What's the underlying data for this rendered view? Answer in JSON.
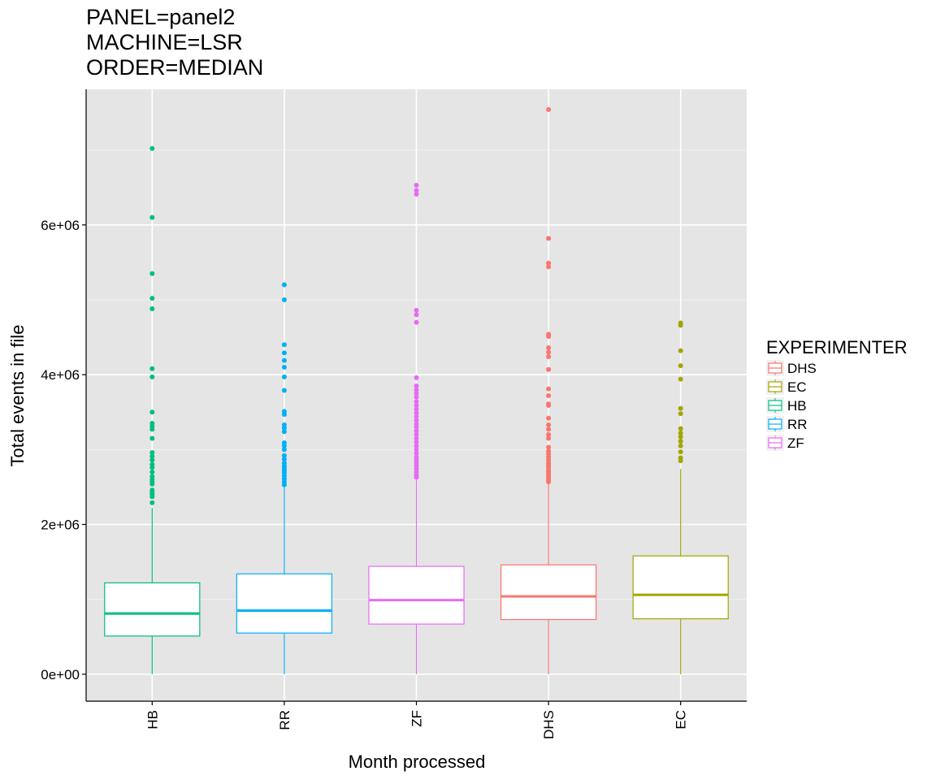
{
  "title_lines": [
    "PANEL=panel2",
    "MACHINE=LSR",
    "ORDER=MEDIAN"
  ],
  "chart_data": {
    "type": "boxplot",
    "xlabel": "Month processed",
    "ylabel": "Total events in file",
    "ylim": [
      -360000,
      7810000
    ],
    "y_ticks": [
      0,
      2000000,
      4000000,
      6000000
    ],
    "y_tick_labels": [
      "0e+00",
      "2e+06",
      "4e+06",
      "6e+06"
    ],
    "grid": true,
    "legend_title": "EXPERIMENTER",
    "legend_position": "right",
    "legend": [
      {
        "name": "DHS",
        "color": "#F8766D"
      },
      {
        "name": "EC",
        "color": "#A3A500"
      },
      {
        "name": "HB",
        "color": "#00BF7D"
      },
      {
        "name": "RR",
        "color": "#00B0F6"
      },
      {
        "name": "ZF",
        "color": "#E76BF3"
      }
    ],
    "categories": [
      "HB",
      "RR",
      "ZF",
      "DHS",
      "EC"
    ],
    "boxes": [
      {
        "category": "HB",
        "color": "#00BF7D",
        "min": 0,
        "q1": 510000,
        "median": 810000,
        "q3": 1220000,
        "max": 2220000,
        "outliers": [
          7020000,
          6100000,
          5350000,
          5020000,
          4880000,
          4080000,
          3970000,
          3500000,
          3350000,
          3310000,
          3270000,
          3150000,
          2960000,
          2910000,
          2860000,
          2800000,
          2760000,
          2700000,
          2640000,
          2600000,
          2570000,
          2540000,
          2460000,
          2430000,
          2400000,
          2370000,
          2290000
        ]
      },
      {
        "category": "RR",
        "color": "#00B0F6",
        "min": 0,
        "q1": 550000,
        "median": 850000,
        "q3": 1340000,
        "max": 2520000,
        "outliers": [
          5200000,
          5000000,
          4400000,
          4290000,
          4190000,
          4100000,
          3970000,
          3790000,
          3510000,
          3470000,
          3330000,
          3290000,
          3240000,
          3090000,
          3050000,
          3000000,
          2920000,
          2870000,
          2820000,
          2780000,
          2750000,
          2720000,
          2690000,
          2650000,
          2610000,
          2570000,
          2530000
        ]
      },
      {
        "category": "ZF",
        "color": "#E76BF3",
        "min": 0,
        "q1": 670000,
        "median": 990000,
        "q3": 1440000,
        "max": 2600000,
        "outliers": [
          6530000,
          6460000,
          6410000,
          4860000,
          4800000,
          4700000,
          3960000,
          3850000,
          3800000,
          3750000,
          3700000,
          3640000,
          3590000,
          3540000,
          3490000,
          3440000,
          3390000,
          3340000,
          3300000,
          3250000,
          3200000,
          3150000,
          3100000,
          3050000,
          3000000,
          2950000,
          2900000,
          2860000,
          2820000,
          2780000,
          2740000,
          2700000,
          2660000,
          2630000
        ]
      },
      {
        "category": "DHS",
        "color": "#F8766D",
        "min": 0,
        "q1": 730000,
        "median": 1040000,
        "q3": 1460000,
        "max": 2560000,
        "outliers": [
          7540000,
          5820000,
          5490000,
          5440000,
          4540000,
          4510000,
          4360000,
          4300000,
          4240000,
          4070000,
          3810000,
          3720000,
          3610000,
          3590000,
          3420000,
          3330000,
          3270000,
          3200000,
          3150000,
          3030000,
          2980000,
          2940000,
          2900000,
          2860000,
          2820000,
          2790000,
          2760000,
          2720000,
          2690000,
          2660000,
          2630000,
          2600000,
          2570000
        ]
      },
      {
        "category": "EC",
        "color": "#A3A500",
        "min": 0,
        "q1": 740000,
        "median": 1060000,
        "q3": 1580000,
        "max": 2740000,
        "outliers": [
          4690000,
          4660000,
          4320000,
          4120000,
          3940000,
          3550000,
          3480000,
          3280000,
          3220000,
          3170000,
          3110000,
          3050000,
          2970000,
          2890000,
          2850000
        ]
      }
    ]
  }
}
